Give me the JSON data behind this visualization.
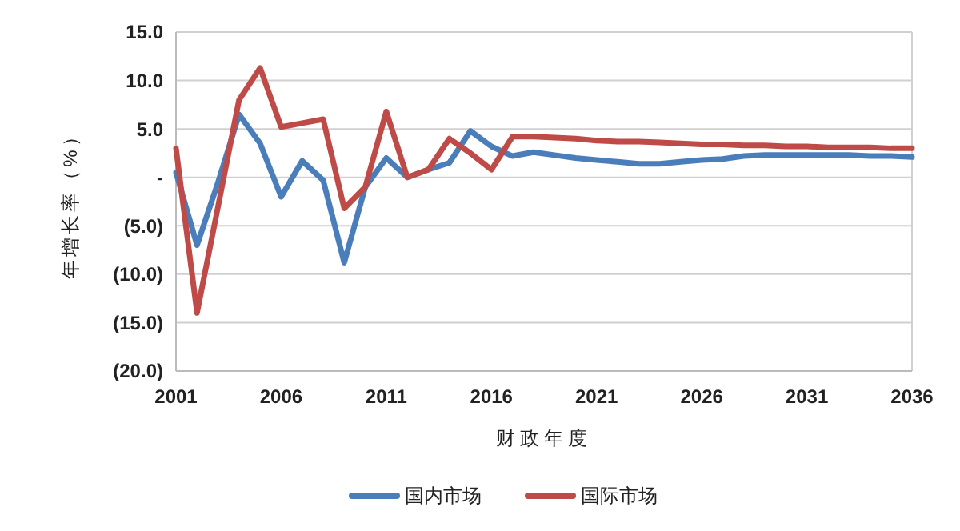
{
  "chart_data": {
    "type": "line",
    "xlabel": "财政年度",
    "ylabel": "年增长率（%）",
    "x": [
      2001,
      2002,
      2003,
      2004,
      2005,
      2006,
      2007,
      2008,
      2009,
      2010,
      2011,
      2012,
      2013,
      2014,
      2015,
      2016,
      2017,
      2018,
      2019,
      2020,
      2021,
      2022,
      2023,
      2024,
      2025,
      2026,
      2027,
      2028,
      2029,
      2030,
      2031,
      2032,
      2033,
      2034,
      2035,
      2036
    ],
    "xlim": [
      2001,
      2036
    ],
    "xticks": [
      2001,
      2006,
      2011,
      2016,
      2021,
      2026,
      2031,
      2036
    ],
    "ylim": [
      -20,
      15
    ],
    "yticks": [
      {
        "value": -20,
        "label": "(20.0)"
      },
      {
        "value": -15,
        "label": "(15.0)"
      },
      {
        "value": -10,
        "label": "(10.0)"
      },
      {
        "value": -5,
        "label": "(5.0)"
      },
      {
        "value": 0,
        "label": "-"
      },
      {
        "value": 5,
        "label": "5.0"
      },
      {
        "value": 10,
        "label": "10.0"
      },
      {
        "value": 15,
        "label": "15.0"
      }
    ],
    "grid": "y",
    "legend": "bottom",
    "marker": "none",
    "line_style": "solid",
    "series": [
      {
        "name": "国内市场",
        "color": "#4a7ebb",
        "values": [
          0.5,
          -7,
          -0.5,
          6.5,
          3.5,
          -2,
          1.7,
          -0.3,
          -8.8,
          -1,
          2,
          0,
          0.8,
          1.5,
          4.8,
          3.2,
          2.2,
          2.6,
          2.3,
          2.0,
          1.8,
          1.6,
          1.4,
          1.4,
          1.6,
          1.8,
          1.9,
          2.2,
          2.3,
          2.3,
          2.3,
          2.3,
          2.3,
          2.2,
          2.2,
          2.1
        ]
      },
      {
        "name": "国际市场",
        "color": "#be4b48",
        "values": [
          3,
          -14,
          -3,
          8,
          11.3,
          5.2,
          5.6,
          6,
          -3.2,
          -1,
          6.8,
          0,
          0.8,
          4,
          2.5,
          0.8,
          4.2,
          4.2,
          4.1,
          4.0,
          3.8,
          3.7,
          3.7,
          3.6,
          3.5,
          3.4,
          3.4,
          3.3,
          3.3,
          3.2,
          3.2,
          3.1,
          3.1,
          3.1,
          3.0,
          3.0
        ]
      }
    ]
  }
}
